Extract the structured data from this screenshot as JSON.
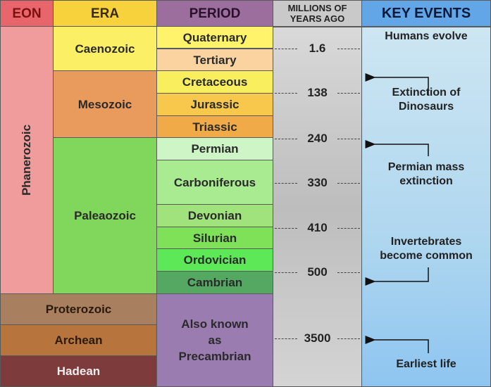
{
  "headers": {
    "eon": "EON",
    "era": "ERA",
    "period": "PERIOD",
    "years": [
      "MILLIONS OF",
      "YEARS AGO"
    ],
    "events": "KEY EVENTS"
  },
  "eons": [
    "Phanerozoic",
    "Proterozoic",
    "Archean",
    "Hadean"
  ],
  "eras": [
    "Caenozoic",
    "Mesozoic",
    "Paleaozoic"
  ],
  "periods": [
    "Quaternary",
    "Tertiary",
    "Cretaceous",
    "Jurassic",
    "Triassic",
    "Permian",
    "Carboniferous",
    "Devonian",
    "Silurian",
    "Ordovician",
    "Cambrian"
  ],
  "precambrian": [
    "Also known",
    "as",
    "Precambrian"
  ],
  "years": [
    "1.6",
    "138",
    "240",
    "330",
    "410",
    "500",
    "3500"
  ],
  "events": [
    [
      "Humans evolve"
    ],
    [
      "Extinction of",
      "Dinosaurs"
    ],
    [
      "Permian mass",
      "extinction"
    ],
    [
      "Invertebrates",
      "become common"
    ],
    [
      "Earliest life"
    ]
  ]
}
